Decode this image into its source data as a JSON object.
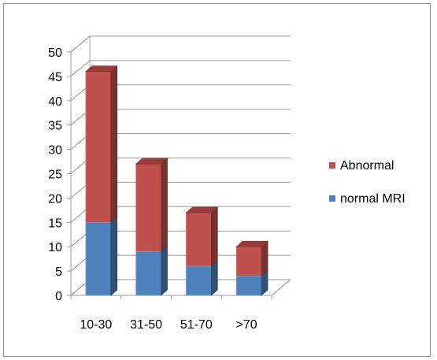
{
  "chart_data": {
    "type": "bar",
    "stacked": true,
    "style": "3d-column",
    "categories": [
      "10-30",
      "31-50",
      "51-70",
      ">70"
    ],
    "series": [
      {
        "name": "normal MRI",
        "values": [
          15,
          9,
          6,
          4
        ],
        "color": "#4f81bd"
      },
      {
        "name": "Abnormal",
        "values": [
          31,
          18,
          11,
          6
        ],
        "color": "#c0504d"
      }
    ],
    "ylim": [
      0,
      50
    ],
    "yticks": [
      "0",
      "5",
      "10",
      "15",
      "20",
      "25",
      "30",
      "35",
      "40",
      "45",
      "50"
    ],
    "grid": true,
    "legend": {
      "placement": "right",
      "entries": [
        "Abnormal",
        "normal MRI"
      ]
    }
  }
}
